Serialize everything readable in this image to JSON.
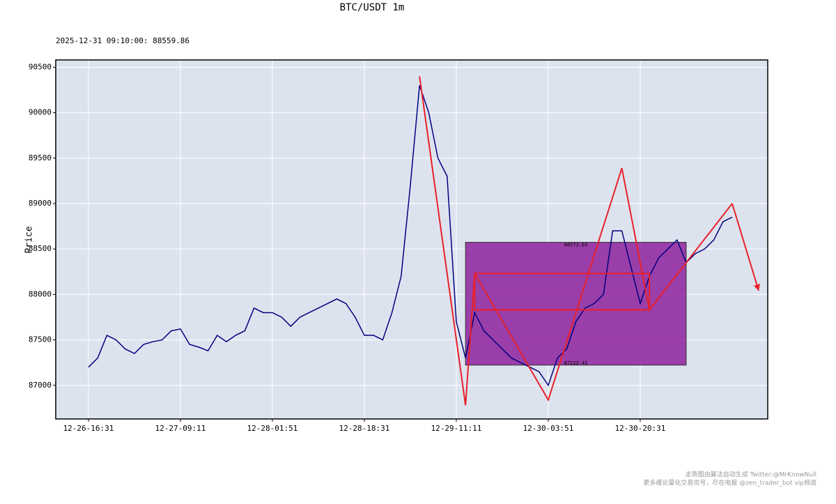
{
  "chart_data": {
    "type": "line",
    "title": "BTC/USDT 1m",
    "subtitle": "2025-12-31 09:10:00: 88559.86",
    "ylabel": "Price",
    "x": [
      "12-26-16:31",
      "12-26-18:11",
      "12-26-19:51",
      "12-26-21:31",
      "12-26-23:11",
      "12-27-00:51",
      "12-27-02:31",
      "12-27-04:11",
      "12-27-05:51",
      "12-27-07:31",
      "12-27-09:11",
      "12-27-10:51",
      "12-27-12:31",
      "12-27-14:11",
      "12-27-15:51",
      "12-27-17:31",
      "12-27-19:11",
      "12-27-20:51",
      "12-27-22:31",
      "12-28-00:11",
      "12-28-01:51",
      "12-28-03:31",
      "12-28-05:11",
      "12-28-06:51",
      "12-28-08:31",
      "12-28-10:11",
      "12-28-11:51",
      "12-28-13:31",
      "12-28-15:11",
      "12-28-16:51",
      "12-28-18:31",
      "12-28-20:11",
      "12-28-21:51",
      "12-28-23:31",
      "12-29-01:11",
      "12-29-02:51",
      "12-29-04:31",
      "12-29-06:11",
      "12-29-07:51",
      "12-29-09:31",
      "12-29-11:11",
      "12-29-12:51",
      "12-29-14:31",
      "12-29-16:11",
      "12-29-17:51",
      "12-29-19:31",
      "12-29-21:11",
      "12-29-22:51",
      "12-30-00:31",
      "12-30-02:11",
      "12-30-03:51",
      "12-30-05:31",
      "12-30-07:11",
      "12-30-08:51",
      "12-30-10:31",
      "12-30-12:11",
      "12-30-13:51",
      "12-30-15:31",
      "12-30-17:11",
      "12-30-18:51",
      "12-30-20:31",
      "12-30-22:11",
      "12-30-23:51",
      "12-31-01:31",
      "12-31-03:11",
      "12-31-04:51",
      "12-31-06:31",
      "12-31-08:11",
      "12-31-09:51",
      "12-31-11:31",
      "12-31-13:11"
    ],
    "series": [
      {
        "name": "BTC/USDT",
        "color": "#000080",
        "values": [
          87200,
          87300,
          87550,
          87500,
          87400,
          87350,
          87450,
          87480,
          87500,
          87600,
          87620,
          87450,
          87420,
          87380,
          87550,
          87480,
          87550,
          87600,
          87850,
          87800,
          87800,
          87750,
          87650,
          87750,
          87800,
          87850,
          87900,
          87950,
          87900,
          87750,
          87550,
          87550,
          87500,
          87800,
          88200,
          89200,
          90300,
          90000,
          89500,
          89300,
          87700,
          87300,
          87800,
          87600,
          87500,
          87400,
          87300,
          87250,
          87200,
          87150,
          87000,
          87300,
          87400,
          87700,
          87850,
          87900,
          88000,
          88700,
          88700,
          88300,
          87900,
          88200,
          88400,
          88500,
          88600,
          88350,
          88450,
          88500,
          88600,
          88800,
          88850
        ]
      }
    ],
    "zigzag": {
      "color": "#e8202a",
      "x": [
        "12-29-04:31",
        "12-29-12:51",
        "12-29-14:31",
        "12-30-03:51",
        "12-30-17:11",
        "12-30-22:11",
        "12-31-13:11"
      ],
      "values": [
        90400,
        86780,
        88230,
        86840,
        89390,
        87830,
        89000
      ]
    },
    "zone": {
      "color": "#8b1a9a",
      "x_start": "12-29-12:51",
      "x_end": "12-31-04:51",
      "high": 88573.65,
      "low": 87222.41,
      "high_label": "88573.65",
      "low_label": "87222.41"
    },
    "ylim": [
      86630,
      90580
    ],
    "yticks": [
      87000,
      87500,
      88000,
      88500,
      89000,
      89500,
      90000,
      90500
    ],
    "xticks": [
      "12-26-16:31",
      "12-27-09:11",
      "12-28-01:51",
      "12-28-18:31",
      "12-29-11:11",
      "12-30-03:51",
      "12-30-20:31"
    ],
    "grid": true,
    "watermark": [
      "走势图由算法自动生成  Twitter:@MrKnowNull",
      "更多缠论量化交易信号，尽在电报 @zen_trader_bot vip频道"
    ]
  }
}
